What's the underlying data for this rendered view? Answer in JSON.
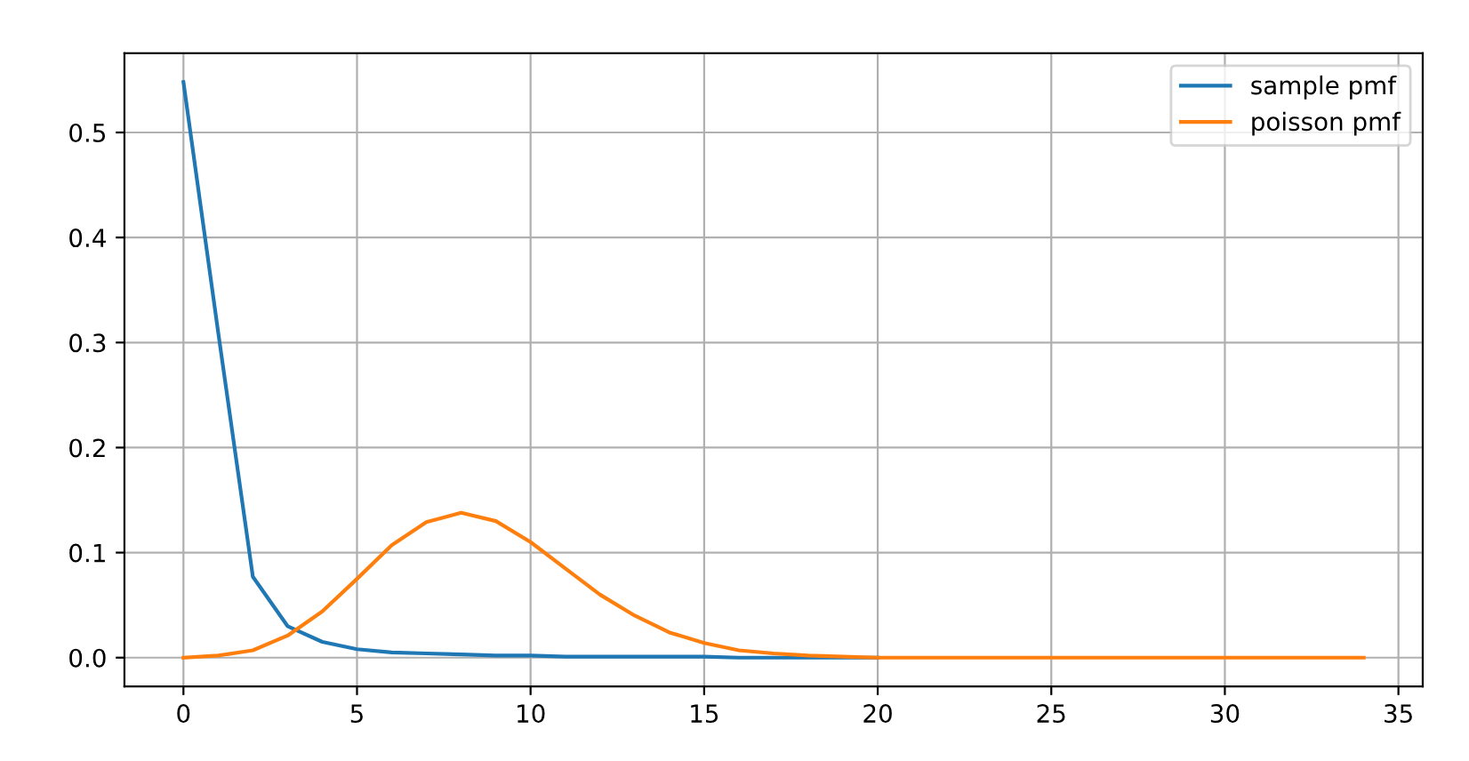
{
  "chart_data": {
    "type": "line",
    "x": [
      0,
      1,
      2,
      3,
      4,
      5,
      6,
      7,
      8,
      9,
      10,
      11,
      12,
      13,
      14,
      15,
      16,
      17,
      18,
      19,
      20,
      21,
      22,
      23,
      24,
      25,
      26,
      27,
      28,
      29,
      30,
      31,
      32,
      33,
      34
    ],
    "series": [
      {
        "name": "sample pmf",
        "color": "#1f77b4",
        "values": [
          0.548,
          0.31,
          0.077,
          0.03,
          0.015,
          0.008,
          0.005,
          0.004,
          0.003,
          0.002,
          0.002,
          0.001,
          0.001,
          0.001,
          0.001,
          0.001,
          0,
          0,
          0,
          0,
          0,
          null,
          null,
          null,
          null,
          null,
          null,
          null,
          null,
          null,
          null,
          null,
          null,
          null,
          null
        ]
      },
      {
        "name": "poisson pmf",
        "color": "#ff7f0e",
        "values": [
          0,
          0.002,
          0.007,
          0.021,
          0.044,
          0.075,
          0.107,
          0.129,
          0.138,
          0.13,
          0.11,
          0.085,
          0.06,
          0.04,
          0.024,
          0.014,
          0.007,
          0.004,
          0.002,
          0.001,
          0,
          0,
          0,
          0,
          0,
          0,
          0,
          0,
          0,
          0,
          0,
          0,
          0,
          0,
          0
        ]
      }
    ],
    "xlim": [
      -1.7,
      35.7
    ],
    "ylim": [
      -0.0274,
      0.5754
    ],
    "xticks": [
      0,
      5,
      10,
      15,
      20,
      25,
      30,
      35
    ],
    "yticks": [
      {
        "value": 0,
        "label": "0.0"
      },
      {
        "value": 0.1,
        "label": "0.1"
      },
      {
        "value": 0.2,
        "label": "0.2"
      },
      {
        "value": 0.3,
        "label": "0.3"
      },
      {
        "value": 0.4,
        "label": "0.4"
      },
      {
        "value": 0.5,
        "label": "0.5"
      }
    ],
    "grid": true,
    "legend": "top right"
  }
}
